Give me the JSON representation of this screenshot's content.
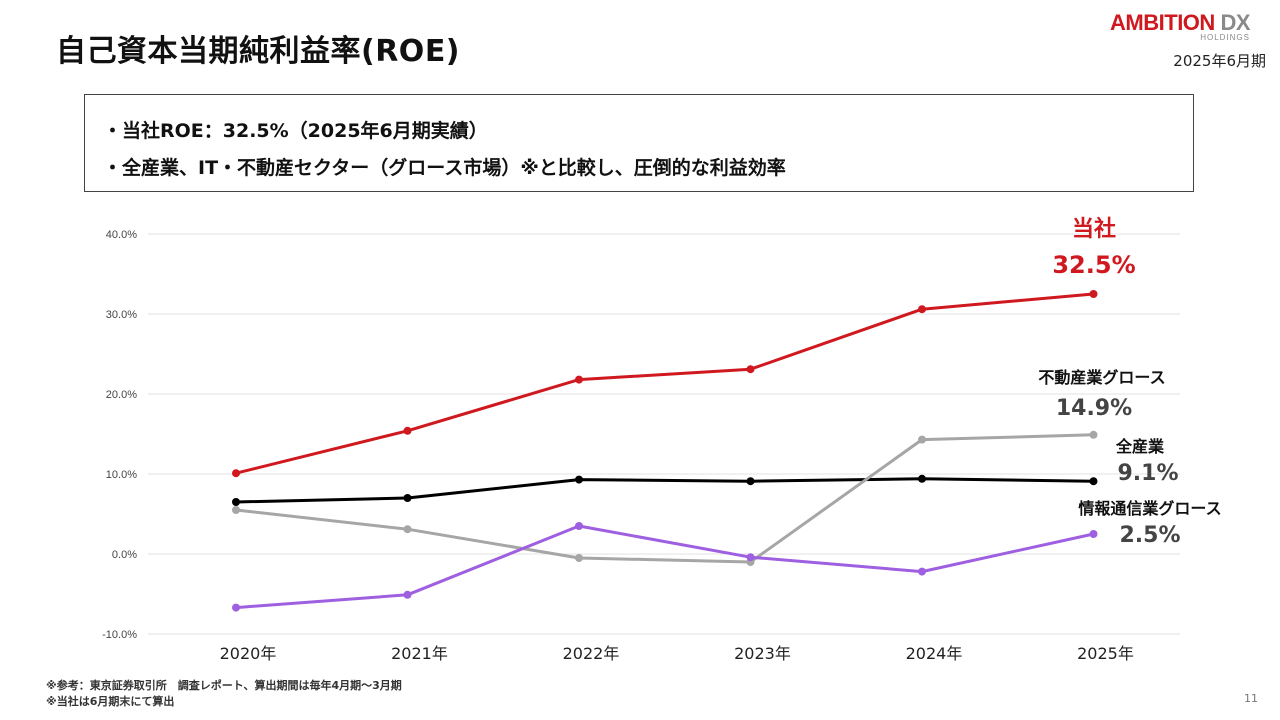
{
  "header": {
    "title": "自己資本当期純利益率(ROE)",
    "period": "2025年6月期"
  },
  "logo": {
    "brand_main": "AMBITION",
    "brand_accent": "DX",
    "brand_sub": "HOLDINGS"
  },
  "summary": {
    "line1": "・当社ROE：32.5%（2025年6月期実績）",
    "line2": "・全産業、IT・不動産セクター（グロース市場）※と比較し、圧倒的な利益効率"
  },
  "chart_data": {
    "type": "line",
    "categories": [
      "2020年",
      "2021年",
      "2022年",
      "2023年",
      "2024年",
      "2025年"
    ],
    "ylim": [
      -10,
      40
    ],
    "yticks": [
      "40.0%",
      "30.0%",
      "20.0%",
      "10.0%",
      "0.0%",
      "-10.0%"
    ],
    "grid": true,
    "series": [
      {
        "name": "当社",
        "color": "#d0181f",
        "values": [
          10.1,
          15.4,
          21.8,
          23.1,
          30.6,
          32.5
        ],
        "end_label": "32.5%"
      },
      {
        "name": "不動産業グロース",
        "color": "#a6a6a6",
        "values": [
          5.5,
          3.1,
          -0.5,
          -1.0,
          14.3,
          14.9
        ],
        "end_label": "14.9%"
      },
      {
        "name": "全産業",
        "color": "#000000",
        "values": [
          6.5,
          7.0,
          9.3,
          9.1,
          9.4,
          9.1
        ],
        "end_label": "9.1%"
      },
      {
        "name": "情報通信業グロース",
        "color": "#9e5fe0",
        "values": [
          -6.7,
          -5.1,
          3.5,
          -0.4,
          -2.2,
          2.5
        ],
        "end_label": "2.5%"
      }
    ]
  },
  "footnotes": {
    "note1": "※参考：東京証券取引所　調査レポート、算出期間は毎年4月期～3月期",
    "note2": "※当社は6月期末にて算出"
  },
  "page": {
    "number": "11"
  }
}
